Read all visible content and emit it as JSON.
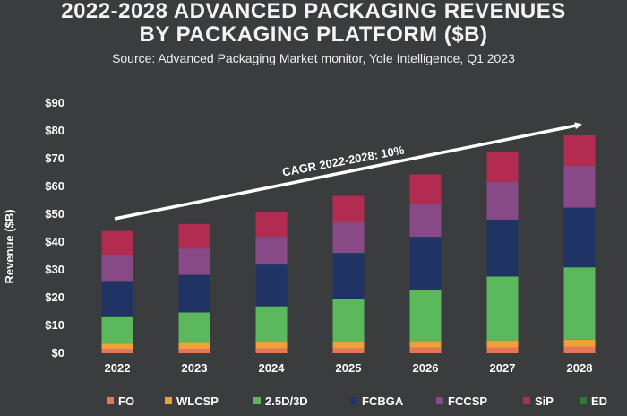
{
  "title_line1": "2022-2028 ADVANCED PACKAGING REVENUES",
  "title_line2": "BY PACKAGING PLATFORM ($B)",
  "subtitle": "Source: Advanced Packaging Market monitor, Yole Intelligence, Q1 2023",
  "chart_data": {
    "type": "bar",
    "stacked": true,
    "categories": [
      "2022",
      "2023",
      "2024",
      "2025",
      "2026",
      "2027",
      "2028"
    ],
    "ylabel": "Revenue ($B)",
    "xlabel": "",
    "ylim": [
      0,
      90
    ],
    "yticks": [
      0,
      10,
      20,
      30,
      40,
      50,
      60,
      70,
      80,
      90
    ],
    "ytick_labels": [
      "$0",
      "$10",
      "$20",
      "$30",
      "$40",
      "$50",
      "$60",
      "$70",
      "$80",
      "$90"
    ],
    "grid": false,
    "legend_position": "bottom",
    "series": [
      {
        "name": "FO",
        "color": "#e8745a",
        "values": [
          1.5,
          1.6,
          1.7,
          1.8,
          2.0,
          2.1,
          2.3
        ]
      },
      {
        "name": "WLCSP",
        "color": "#f0a03a",
        "values": [
          2.0,
          2.1,
          2.2,
          2.3,
          2.4,
          2.5,
          2.6
        ]
      },
      {
        "name": "2.5D/3D",
        "color": "#5cb85c",
        "values": [
          9.5,
          11.0,
          13.0,
          15.5,
          18.5,
          23.0,
          26.0
        ]
      },
      {
        "name": "FCBGA",
        "color": "#1f3464",
        "values": [
          13.0,
          13.5,
          15.0,
          16.5,
          19.0,
          20.5,
          21.5
        ]
      },
      {
        "name": "FCCSP",
        "color": "#874a87",
        "values": [
          9.5,
          9.5,
          10.0,
          11.0,
          12.0,
          13.5,
          15.0
        ]
      },
      {
        "name": "SiP",
        "color": "#b22c52",
        "values": [
          8.5,
          8.8,
          9.0,
          9.5,
          10.5,
          11.0,
          11.0
        ]
      },
      {
        "name": "ED",
        "color": "#2f7a3a",
        "values": [
          0.0,
          0.0,
          0.0,
          0.0,
          0.0,
          0.0,
          0.0
        ]
      }
    ],
    "annotation": "CAGR 2022-2028: 10%"
  }
}
